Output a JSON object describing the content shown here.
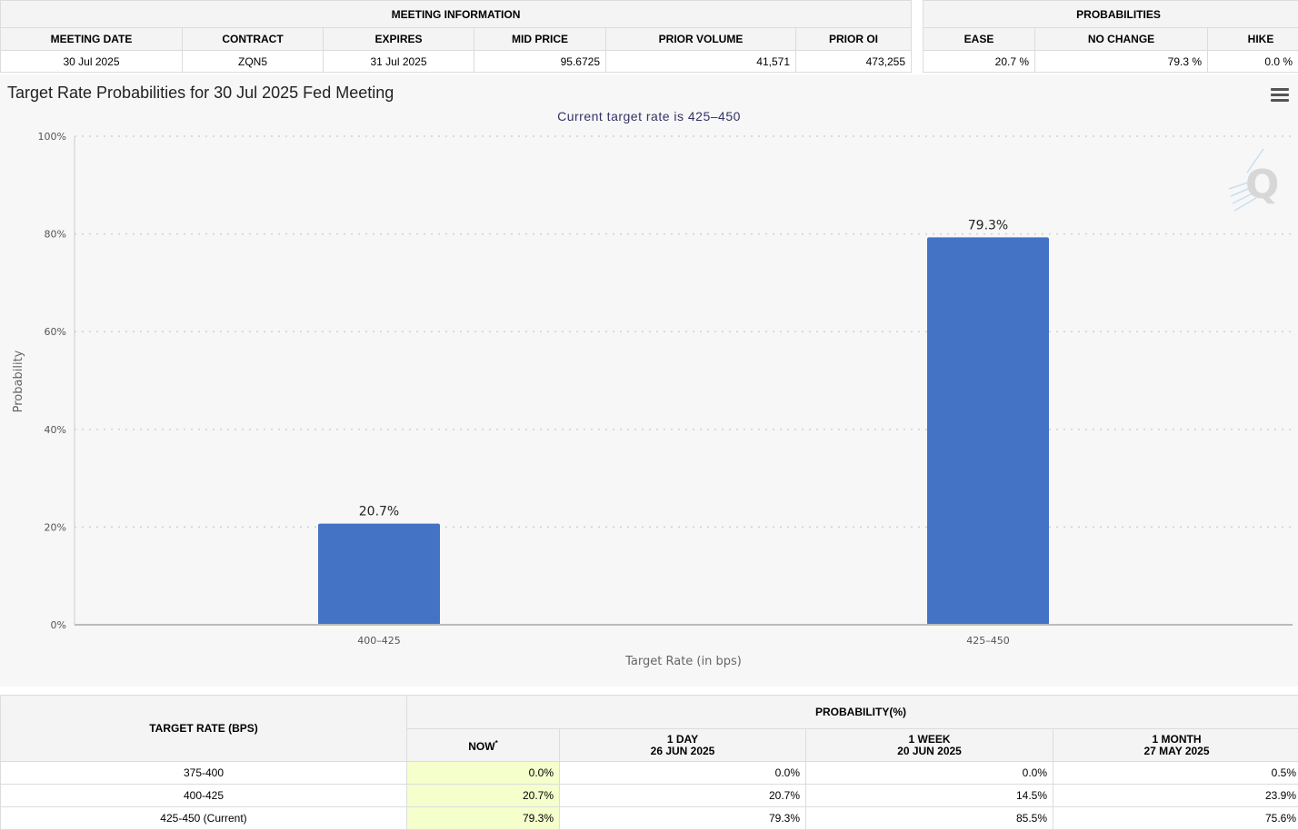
{
  "meeting_info": {
    "title": "MEETING INFORMATION",
    "headers": [
      "MEETING DATE",
      "CONTRACT",
      "EXPIRES",
      "MID PRICE",
      "PRIOR VOLUME",
      "PRIOR OI"
    ],
    "row": [
      "30 Jul 2025",
      "ZQN5",
      "31 Jul 2025",
      "95.6725",
      "41,571",
      "473,255"
    ]
  },
  "probabilities": {
    "title": "PROBABILITIES",
    "headers": [
      "EASE",
      "NO CHANGE",
      "HIKE"
    ],
    "row": [
      "20.7 %",
      "79.3 %",
      "0.0 %"
    ]
  },
  "chart": {
    "title": "Target Rate Probabilities for 30 Jul 2025 Fed Meeting",
    "subtitle": "Current target rate is 425–450",
    "watermark": "Q",
    "accent_color": "#4472c4"
  },
  "chart_data": {
    "type": "bar",
    "title": "Target Rate Probabilities for 30 Jul 2025 Fed Meeting",
    "subtitle": "Current target rate is 425–450",
    "categories": [
      "400–425",
      "425–450"
    ],
    "values": [
      20.7,
      79.3
    ],
    "value_labels": [
      "20.7%",
      "79.3%"
    ],
    "xlabel": "Target Rate (in bps)",
    "ylabel": "Probability",
    "ylim": [
      0,
      100
    ],
    "yticks": [
      "0%",
      "20%",
      "40%",
      "60%",
      "80%",
      "100%"
    ],
    "ytick_values": [
      0,
      20,
      40,
      60,
      80,
      100
    ],
    "grid": true,
    "color": "#4472c4"
  },
  "rate_table": {
    "rate_header": "TARGET RATE (BPS)",
    "prob_header": "PROBABILITY(%)",
    "columns": [
      {
        "label": "NOW",
        "sup": "*",
        "date": ""
      },
      {
        "label": "1 DAY",
        "date": "26 JUN 2025"
      },
      {
        "label": "1 WEEK",
        "date": "20 JUN 2025"
      },
      {
        "label": "1 MONTH",
        "date": "27 MAY 2025"
      }
    ],
    "rows": [
      {
        "rate": "375-400",
        "values": [
          "0.0%",
          "0.0%",
          "0.0%",
          "0.5%"
        ]
      },
      {
        "rate": "400-425",
        "values": [
          "20.7%",
          "20.7%",
          "14.5%",
          "23.9%"
        ]
      },
      {
        "rate": "425-450 (Current)",
        "values": [
          "79.3%",
          "79.3%",
          "85.5%",
          "75.6%"
        ]
      }
    ]
  }
}
